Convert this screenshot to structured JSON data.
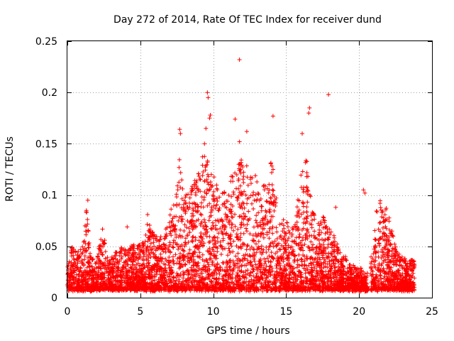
{
  "chart_data": {
    "type": "scatter",
    "title": "Day 272 of 2014, Rate Of TEC Index for receiver dund",
    "xlabel": "GPS time / hours",
    "ylabel": "ROTI / TECUs",
    "xlim": [
      0,
      25
    ],
    "ylim": [
      0,
      0.25
    ],
    "grid": true,
    "marker": "+",
    "series_color": "#ff0000",
    "x_ticks": [
      0,
      5,
      10,
      15,
      20,
      25
    ],
    "x_tick_labels": [
      "0",
      "5",
      "10",
      "15",
      "20",
      "25"
    ],
    "y_ticks": [
      0,
      0.05,
      0.1,
      0.15,
      0.2,
      0.25
    ],
    "y_tick_labels": [
      "0",
      "0.05",
      "0.1",
      "0.15",
      "0.2",
      "0.25"
    ],
    "data_gaps_hours": [
      [
        20.6,
        20.8
      ]
    ],
    "highlight_points": [
      {
        "x": 11.8,
        "y": 0.232
      },
      {
        "x": 9.6,
        "y": 0.2
      },
      {
        "x": 9.65,
        "y": 0.195
      },
      {
        "x": 17.9,
        "y": 0.198
      },
      {
        "x": 16.6,
        "y": 0.185
      },
      {
        "x": 16.55,
        "y": 0.18
      },
      {
        "x": 14.1,
        "y": 0.177
      },
      {
        "x": 11.5,
        "y": 0.174
      },
      {
        "x": 9.8,
        "y": 0.178
      },
      {
        "x": 9.75,
        "y": 0.175
      },
      {
        "x": 9.5,
        "y": 0.165
      },
      {
        "x": 7.7,
        "y": 0.164
      },
      {
        "x": 7.75,
        "y": 0.16
      },
      {
        "x": 12.3,
        "y": 0.162
      },
      {
        "x": 16.1,
        "y": 0.16
      },
      {
        "x": 9.4,
        "y": 0.15
      },
      {
        "x": 11.8,
        "y": 0.152
      },
      {
        "x": 20.3,
        "y": 0.105
      },
      {
        "x": 20.4,
        "y": 0.102
      },
      {
        "x": 18.4,
        "y": 0.088
      },
      {
        "x": 1.4,
        "y": 0.095
      },
      {
        "x": 1.3,
        "y": 0.085
      },
      {
        "x": 4.1,
        "y": 0.069
      },
      {
        "x": 5.5,
        "y": 0.081
      }
    ],
    "envelope": {
      "description": "upper envelope of ROTI scatter (hour, ROTI)",
      "points": [
        [
          0.0,
          0.03
        ],
        [
          0.3,
          0.05
        ],
        [
          0.8,
          0.045
        ],
        [
          1.0,
          0.05
        ],
        [
          1.3,
          0.09
        ],
        [
          1.6,
          0.04
        ],
        [
          2.0,
          0.035
        ],
        [
          2.4,
          0.07
        ],
        [
          2.8,
          0.035
        ],
        [
          3.3,
          0.045
        ],
        [
          3.8,
          0.05
        ],
        [
          4.3,
          0.05
        ],
        [
          4.7,
          0.055
        ],
        [
          5.1,
          0.05
        ],
        [
          5.5,
          0.075
        ],
        [
          6.0,
          0.06
        ],
        [
          6.5,
          0.06
        ],
        [
          7.0,
          0.08
        ],
        [
          7.3,
          0.1
        ],
        [
          7.7,
          0.14
        ],
        [
          8.0,
          0.1
        ],
        [
          8.4,
          0.11
        ],
        [
          8.9,
          0.12
        ],
        [
          9.3,
          0.14
        ],
        [
          9.7,
          0.14
        ],
        [
          10.1,
          0.12
        ],
        [
          10.5,
          0.1
        ],
        [
          10.9,
          0.11
        ],
        [
          11.3,
          0.12
        ],
        [
          11.7,
          0.13
        ],
        [
          12.1,
          0.14
        ],
        [
          12.5,
          0.12
        ],
        [
          12.9,
          0.12
        ],
        [
          13.3,
          0.11
        ],
        [
          13.7,
          0.11
        ],
        [
          14.0,
          0.14
        ],
        [
          14.4,
          0.09
        ],
        [
          14.8,
          0.08
        ],
        [
          15.2,
          0.07
        ],
        [
          15.6,
          0.07
        ],
        [
          16.0,
          0.12
        ],
        [
          16.4,
          0.14
        ],
        [
          16.7,
          0.1
        ],
        [
          17.1,
          0.07
        ],
        [
          17.5,
          0.08
        ],
        [
          17.9,
          0.07
        ],
        [
          18.3,
          0.06
        ],
        [
          18.7,
          0.045
        ],
        [
          19.1,
          0.04
        ],
        [
          19.5,
          0.035
        ],
        [
          19.9,
          0.03
        ],
        [
          20.2,
          0.03
        ],
        [
          20.5,
          0.02
        ],
        [
          21.0,
          0.06
        ],
        [
          21.3,
          0.1
        ],
        [
          21.6,
          0.09
        ],
        [
          21.9,
          0.1
        ],
        [
          22.2,
          0.07
        ],
        [
          22.6,
          0.045
        ],
        [
          23.0,
          0.04
        ],
        [
          23.4,
          0.035
        ],
        [
          23.8,
          0.04
        ]
      ]
    }
  }
}
